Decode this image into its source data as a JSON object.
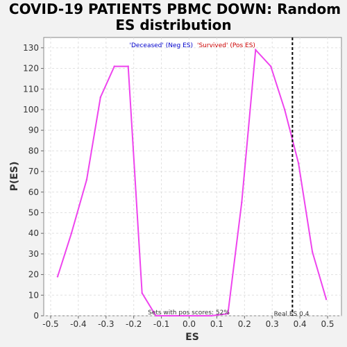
{
  "chart_data": {
    "type": "line",
    "title_lines": [
      "COVID-19 PATIENTS PBMC DOWN: Random",
      "ES distribution"
    ],
    "xlabel": "ES",
    "ylabel": "P(ES)",
    "xlim": [
      -0.525,
      0.55
    ],
    "ylim": [
      0,
      135
    ],
    "x_ticks": [
      -0.5,
      -0.4,
      -0.3,
      -0.2,
      -0.1,
      0.0,
      0.1,
      0.2,
      0.3,
      0.4,
      0.5
    ],
    "x_tick_labels": [
      "-0.5",
      "-0.4",
      "-0.3",
      "-0.2",
      "-0.1",
      "0.0",
      "0.1",
      "0.2",
      "0.3",
      "0.4",
      "0.5"
    ],
    "y_ticks": [
      0,
      10,
      20,
      30,
      40,
      50,
      60,
      70,
      80,
      90,
      100,
      110,
      120,
      130
    ],
    "y_tick_labels": [
      "0",
      "10",
      "20",
      "30",
      "40",
      "50",
      "60",
      "70",
      "80",
      "90",
      "100",
      "110",
      "120",
      "130"
    ],
    "grid": true,
    "legend": {
      "placement": "top-center",
      "neg_label": "'Deceased' (Neg ES)",
      "pos_label": "'Survived' (Pos ES)",
      "neg_color": "#0000cc",
      "pos_color": "#cc0000"
    },
    "series": [
      {
        "color": "#ee44ee",
        "x": [
          -0.475,
          -0.425,
          -0.37,
          -0.32,
          -0.27,
          -0.22,
          -0.17,
          -0.12,
          -0.07,
          -0.02,
          0.03,
          0.08,
          0.14,
          0.19,
          0.24,
          0.295,
          0.345,
          0.395,
          0.445,
          0.495
        ],
        "y": [
          19,
          40,
          66,
          106,
          121,
          121,
          11,
          0,
          0,
          0,
          0,
          0,
          1,
          55,
          129,
          121,
          100,
          74,
          31,
          8
        ]
      }
    ],
    "real_es": 0.373,
    "real_es_label": "Real ES 0.4",
    "annotation": "Sets with pos scores: 52%",
    "line_color": "#ee44ee",
    "real_es_color": "#000000"
  }
}
